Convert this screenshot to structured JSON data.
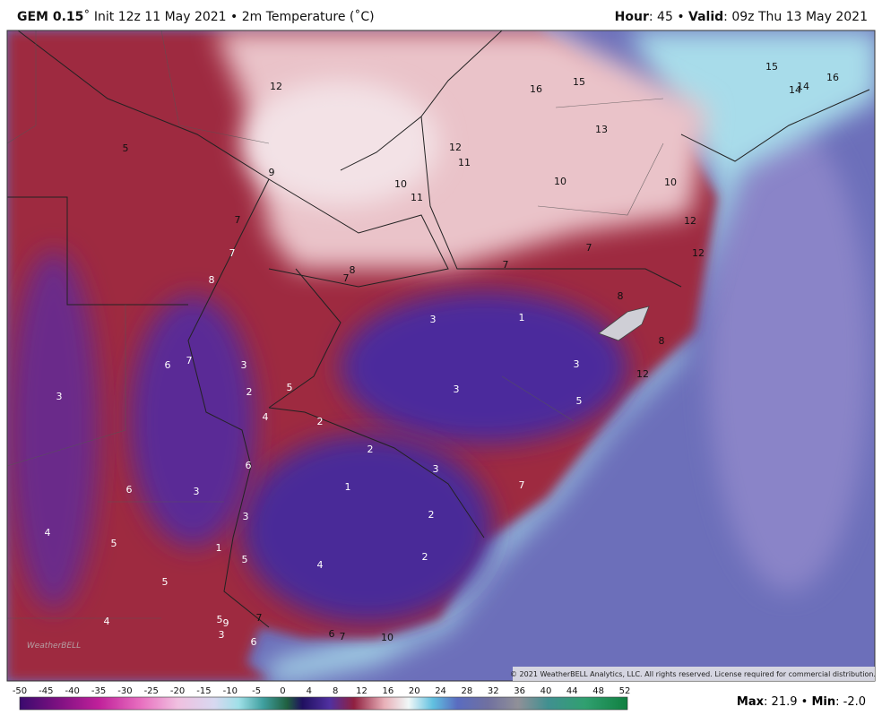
{
  "header": {
    "model": "GEM 0.15",
    "run": "˚ Init 12z 11 May 2021",
    "separator": "•",
    "field": "2m Temperature (˚C)",
    "hour_label": "Hour",
    "hour": ": 45",
    "valid_label": "Valid",
    "valid": ": 09z Thu 13 May 2021"
  },
  "map": {
    "labels": [
      "5",
      "12",
      "16",
      "15",
      "15",
      "14",
      "14",
      "16",
      "13",
      "12",
      "11",
      "9",
      "10",
      "11",
      "10",
      "10",
      "12",
      "7",
      "7",
      "7",
      "12",
      "8",
      "7",
      "7",
      "8",
      "8",
      "3",
      "1",
      "8",
      "3",
      "12",
      "6",
      "7",
      "3",
      "3",
      "2",
      "5",
      "3",
      "5",
      "4",
      "2",
      "2",
      "3",
      "6",
      "1",
      "6",
      "3",
      "7",
      "3",
      "2",
      "4",
      "5",
      "1",
      "5",
      "4",
      "2",
      "5",
      "4",
      "5",
      "7",
      "9",
      "3",
      "6",
      "6",
      "7",
      "10"
    ],
    "copyright": "© 2021 WeatherBELL Analytics, LLC. All rights reserved. License required for commercial distribution.",
    "logo": "WeatherBELL"
  },
  "colorbar": {
    "ticks": [
      -50,
      -45,
      -40,
      -35,
      -30,
      -25,
      -20,
      -15,
      -10,
      -5,
      0,
      4,
      8,
      12,
      16,
      20,
      24,
      28,
      32,
      36,
      40,
      44,
      48,
      52
    ]
  },
  "footer": {
    "max_label": "Max",
    "max": ": 21.9",
    "min_label": "Min",
    "min": ": -2.0"
  }
}
